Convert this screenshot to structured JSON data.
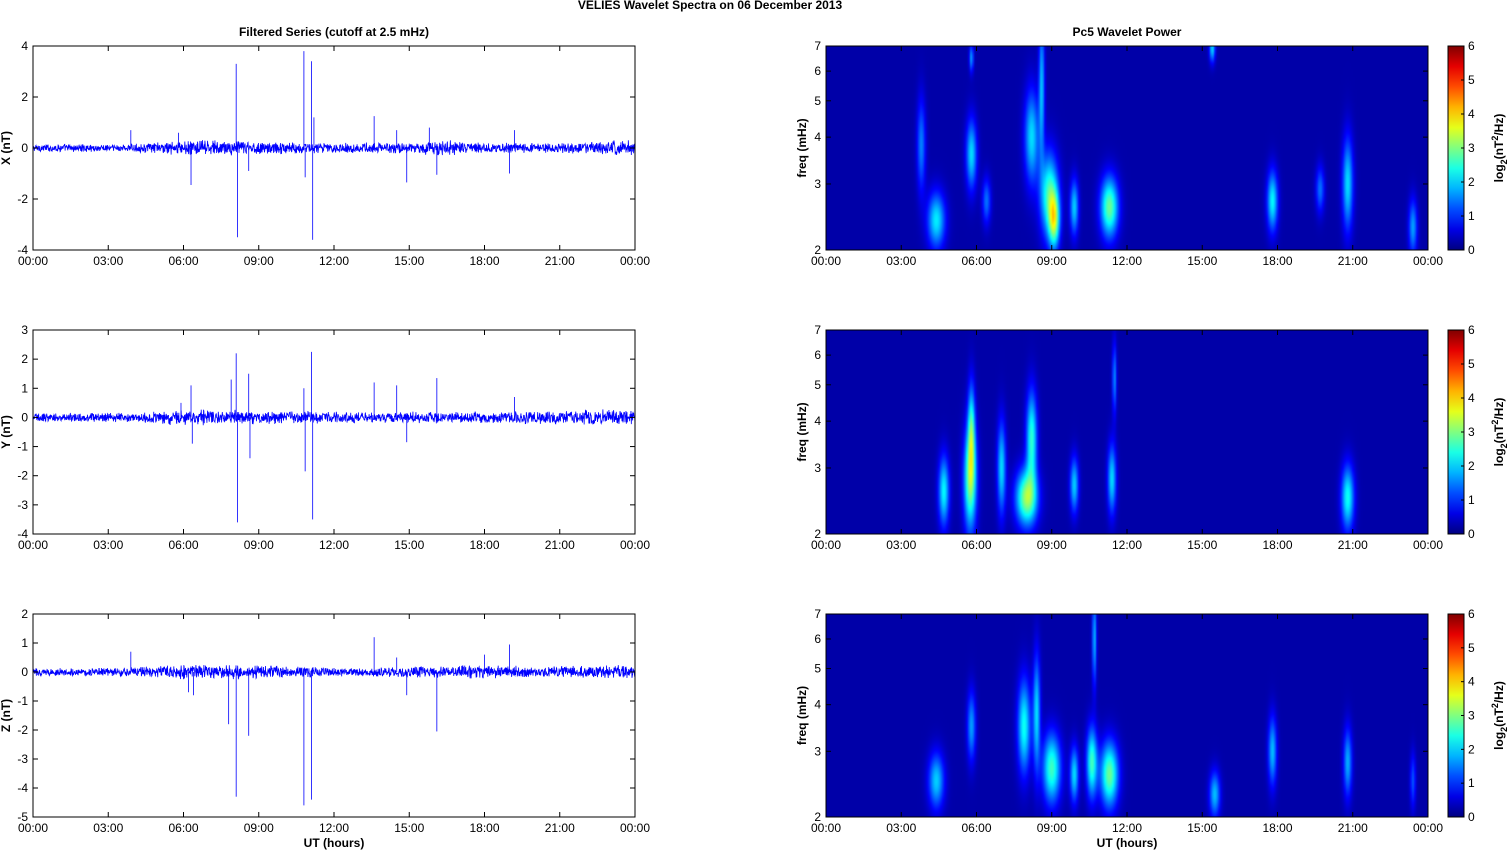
{
  "figure": {
    "title": "VELIES Wavelet Spectra on 06 December  2013"
  },
  "chart_data": [
    {
      "type": "line",
      "title": "Filtered Series (cutoff at 2.5 mHz)",
      "ylabel": "X (nT)",
      "xlabel": "",
      "x_ticks": [
        "00:00",
        "03:00",
        "06:00",
        "09:00",
        "12:00",
        "15:00",
        "18:00",
        "21:00",
        "00:00"
      ],
      "y_ticks": [
        -4,
        -2,
        0,
        2,
        4
      ],
      "ylim": [
        -4,
        4
      ],
      "xlim_hours": [
        0,
        24
      ],
      "line_color": "#0000ff",
      "noise_envelope": [
        {
          "t": 0,
          "a": 0.12
        },
        {
          "t": 4,
          "a": 0.12
        },
        {
          "t": 5.5,
          "a": 0.2
        },
        {
          "t": 7,
          "a": 0.25
        },
        {
          "t": 9,
          "a": 0.2
        },
        {
          "t": 12,
          "a": 0.15
        },
        {
          "t": 15,
          "a": 0.18
        },
        {
          "t": 16,
          "a": 0.25
        },
        {
          "t": 18,
          "a": 0.15
        },
        {
          "t": 21,
          "a": 0.15
        },
        {
          "t": 24,
          "a": 0.25
        }
      ],
      "spikes": [
        {
          "t": 3.9,
          "v": 0.7
        },
        {
          "t": 5.8,
          "v": 0.6
        },
        {
          "t": 6.3,
          "v": -1.45
        },
        {
          "t": 8.1,
          "v": 3.3
        },
        {
          "t": 8.15,
          "v": -3.5
        },
        {
          "t": 8.6,
          "v": -0.9
        },
        {
          "t": 10.8,
          "v": 3.8
        },
        {
          "t": 10.85,
          "v": -1.15
        },
        {
          "t": 11.1,
          "v": 3.4
        },
        {
          "t": 11.15,
          "v": -3.6
        },
        {
          "t": 11.2,
          "v": 1.2
        },
        {
          "t": 13.6,
          "v": 1.25
        },
        {
          "t": 14.5,
          "v": 0.7
        },
        {
          "t": 14.9,
          "v": -1.35
        },
        {
          "t": 15.8,
          "v": 0.8
        },
        {
          "t": 16.1,
          "v": -1.05
        },
        {
          "t": 19.0,
          "v": -1.0
        },
        {
          "t": 19.2,
          "v": 0.7
        }
      ]
    },
    {
      "type": "line",
      "title": "",
      "ylabel": "Y (nT)",
      "xlabel": "",
      "x_ticks": [
        "00:00",
        "03:00",
        "06:00",
        "09:00",
        "12:00",
        "15:00",
        "18:00",
        "21:00",
        "00:00"
      ],
      "y_ticks": [
        -4,
        -3,
        -2,
        -1,
        0,
        1,
        2,
        3
      ],
      "ylim": [
        -4,
        3
      ],
      "xlim_hours": [
        0,
        24
      ],
      "line_color": "#0000ff",
      "noise_envelope": [
        {
          "t": 0,
          "a": 0.12
        },
        {
          "t": 4,
          "a": 0.12
        },
        {
          "t": 5.5,
          "a": 0.2
        },
        {
          "t": 7,
          "a": 0.2
        },
        {
          "t": 9,
          "a": 0.18
        },
        {
          "t": 12,
          "a": 0.15
        },
        {
          "t": 15,
          "a": 0.15
        },
        {
          "t": 18,
          "a": 0.15
        },
        {
          "t": 21,
          "a": 0.2
        },
        {
          "t": 24,
          "a": 0.2
        }
      ],
      "spikes": [
        {
          "t": 5.9,
          "v": 0.5
        },
        {
          "t": 6.3,
          "v": 1.1
        },
        {
          "t": 6.35,
          "v": -0.9
        },
        {
          "t": 7.9,
          "v": 1.3
        },
        {
          "t": 8.1,
          "v": 2.2
        },
        {
          "t": 8.15,
          "v": -3.6
        },
        {
          "t": 8.6,
          "v": 1.5
        },
        {
          "t": 8.65,
          "v": -1.4
        },
        {
          "t": 10.8,
          "v": 1.0
        },
        {
          "t": 10.85,
          "v": -1.85
        },
        {
          "t": 11.1,
          "v": 2.25
        },
        {
          "t": 11.15,
          "v": -3.5
        },
        {
          "t": 13.6,
          "v": 1.2
        },
        {
          "t": 14.5,
          "v": 1.1
        },
        {
          "t": 14.9,
          "v": -0.85
        },
        {
          "t": 16.1,
          "v": 1.35
        },
        {
          "t": 19.2,
          "v": 0.7
        }
      ]
    },
    {
      "type": "line",
      "title": "",
      "ylabel": "Z (nT)",
      "xlabel": "UT (hours)",
      "x_ticks": [
        "00:00",
        "03:00",
        "06:00",
        "09:00",
        "12:00",
        "15:00",
        "18:00",
        "21:00",
        "00:00"
      ],
      "y_ticks": [
        -5,
        -4,
        -3,
        -2,
        -1,
        0,
        1,
        2
      ],
      "ylim": [
        -5,
        2
      ],
      "xlim_hours": [
        0,
        24
      ],
      "line_color": "#0000ff",
      "noise_envelope": [
        {
          "t": 0,
          "a": 0.1
        },
        {
          "t": 4,
          "a": 0.12
        },
        {
          "t": 5.5,
          "a": 0.18
        },
        {
          "t": 7,
          "a": 0.2
        },
        {
          "t": 9,
          "a": 0.18
        },
        {
          "t": 12,
          "a": 0.12
        },
        {
          "t": 15,
          "a": 0.15
        },
        {
          "t": 18,
          "a": 0.18
        },
        {
          "t": 21,
          "a": 0.15
        },
        {
          "t": 24,
          "a": 0.2
        }
      ],
      "spikes": [
        {
          "t": 3.9,
          "v": 0.7
        },
        {
          "t": 6.2,
          "v": -0.7
        },
        {
          "t": 6.4,
          "v": -0.8
        },
        {
          "t": 7.8,
          "v": -1.8
        },
        {
          "t": 8.1,
          "v": -4.3
        },
        {
          "t": 8.6,
          "v": -2.2
        },
        {
          "t": 10.8,
          "v": -4.6
        },
        {
          "t": 11.1,
          "v": -4.4
        },
        {
          "t": 13.6,
          "v": 1.2
        },
        {
          "t": 14.5,
          "v": 0.5
        },
        {
          "t": 14.9,
          "v": -0.8
        },
        {
          "t": 16.1,
          "v": -2.05
        },
        {
          "t": 18.0,
          "v": 0.6
        },
        {
          "t": 19.0,
          "v": 0.95
        }
      ]
    },
    {
      "type": "heatmap",
      "title": "Pc5 Wavelet Power",
      "ylabel": "freq (mHz)",
      "xlabel": "",
      "colorbar_label": "log2(nT^2/Hz)",
      "colorbar_ticks": [
        0,
        1,
        2,
        3,
        4,
        5,
        6
      ],
      "x_ticks": [
        "00:00",
        "03:00",
        "06:00",
        "09:00",
        "12:00",
        "15:00",
        "18:00",
        "21:00",
        "00:00"
      ],
      "y_ticks": [
        2,
        3,
        4,
        5,
        6,
        7
      ],
      "y_scale": "log",
      "ylim": [
        2,
        7
      ],
      "zlim": [
        0,
        6
      ],
      "blobs": [
        {
          "t": 3.8,
          "f": 3.8,
          "dt": 0.12,
          "df": 0.2,
          "p": 1.4
        },
        {
          "t": 4.4,
          "f": 2.4,
          "dt": 0.25,
          "df": 0.12,
          "p": 2.1
        },
        {
          "t": 5.8,
          "f": 3.6,
          "dt": 0.15,
          "df": 0.15,
          "p": 2.0
        },
        {
          "t": 6.4,
          "f": 2.7,
          "dt": 0.12,
          "df": 0.1,
          "p": 1.3
        },
        {
          "t": 5.8,
          "f": 6.5,
          "dt": 0.06,
          "df": 0.06,
          "p": 1.6
        },
        {
          "t": 8.2,
          "f": 4.0,
          "dt": 0.2,
          "df": 0.2,
          "p": 2.0
        },
        {
          "t": 8.6,
          "f": 5.5,
          "dt": 0.08,
          "df": 0.3,
          "p": 1.8
        },
        {
          "t": 8.9,
          "f": 2.8,
          "dt": 0.25,
          "df": 0.18,
          "p": 2.6
        },
        {
          "t": 9.1,
          "f": 2.4,
          "dt": 0.15,
          "df": 0.12,
          "p": 2.8
        },
        {
          "t": 9.9,
          "f": 2.6,
          "dt": 0.12,
          "df": 0.12,
          "p": 1.9
        },
        {
          "t": 11.3,
          "f": 2.6,
          "dt": 0.25,
          "df": 0.13,
          "p": 2.9
        },
        {
          "t": 15.4,
          "f": 6.9,
          "dt": 0.08,
          "df": 0.06,
          "p": 2.0
        },
        {
          "t": 17.8,
          "f": 2.7,
          "dt": 0.15,
          "df": 0.13,
          "p": 2.2
        },
        {
          "t": 19.7,
          "f": 2.9,
          "dt": 0.12,
          "df": 0.1,
          "p": 1.3
        },
        {
          "t": 20.8,
          "f": 3.0,
          "dt": 0.15,
          "df": 0.2,
          "p": 2.0
        },
        {
          "t": 23.4,
          "f": 2.3,
          "dt": 0.12,
          "df": 0.12,
          "p": 1.6
        }
      ]
    },
    {
      "type": "heatmap",
      "title": "",
      "ylabel": "freq (mHz)",
      "xlabel": "",
      "colorbar_label": "log2(nT^2/Hz)",
      "colorbar_ticks": [
        0,
        1,
        2,
        3,
        4,
        5,
        6
      ],
      "x_ticks": [
        "00:00",
        "03:00",
        "06:00",
        "09:00",
        "12:00",
        "15:00",
        "18:00",
        "21:00",
        "00:00"
      ],
      "y_ticks": [
        2,
        3,
        4,
        5,
        6,
        7
      ],
      "y_scale": "log",
      "ylim": [
        2,
        7
      ],
      "zlim": [
        0,
        6
      ],
      "blobs": [
        {
          "t": 4.7,
          "f": 2.6,
          "dt": 0.15,
          "df": 0.15,
          "p": 2.2
        },
        {
          "t": 5.75,
          "f": 2.8,
          "dt": 0.18,
          "df": 0.22,
          "p": 3.0
        },
        {
          "t": 5.8,
          "f": 3.8,
          "dt": 0.1,
          "df": 0.2,
          "p": 2.2
        },
        {
          "t": 7.0,
          "f": 3.0,
          "dt": 0.12,
          "df": 0.2,
          "p": 2.0
        },
        {
          "t": 8.0,
          "f": 2.5,
          "dt": 0.3,
          "df": 0.12,
          "p": 3.2
        },
        {
          "t": 8.2,
          "f": 3.6,
          "dt": 0.15,
          "df": 0.2,
          "p": 2.5
        },
        {
          "t": 9.9,
          "f": 2.7,
          "dt": 0.12,
          "df": 0.12,
          "p": 1.9
        },
        {
          "t": 11.4,
          "f": 2.8,
          "dt": 0.12,
          "df": 0.15,
          "p": 2.0
        },
        {
          "t": 11.5,
          "f": 5.2,
          "dt": 0.06,
          "df": 0.15,
          "p": 1.5
        },
        {
          "t": 20.8,
          "f": 2.5,
          "dt": 0.18,
          "df": 0.14,
          "p": 2.3
        }
      ]
    },
    {
      "type": "heatmap",
      "title": "",
      "ylabel": "freq (mHz)",
      "xlabel": "UT (hours)",
      "colorbar_label": "log2(nT^2/Hz)",
      "colorbar_ticks": [
        0,
        1,
        2,
        3,
        4,
        5,
        6
      ],
      "x_ticks": [
        "00:00",
        "03:00",
        "06:00",
        "09:00",
        "12:00",
        "15:00",
        "18:00",
        "21:00",
        "00:00"
      ],
      "y_ticks": [
        2,
        3,
        4,
        5,
        6,
        7
      ],
      "y_scale": "log",
      "ylim": [
        2,
        7
      ],
      "zlim": [
        0,
        6
      ],
      "blobs": [
        {
          "t": 4.4,
          "f": 2.5,
          "dt": 0.22,
          "df": 0.12,
          "p": 1.9
        },
        {
          "t": 5.8,
          "f": 3.5,
          "dt": 0.12,
          "df": 0.15,
          "p": 1.6
        },
        {
          "t": 7.9,
          "f": 3.5,
          "dt": 0.18,
          "df": 0.2,
          "p": 2.3
        },
        {
          "t": 8.4,
          "f": 3.8,
          "dt": 0.1,
          "df": 0.25,
          "p": 2.0
        },
        {
          "t": 9.0,
          "f": 2.7,
          "dt": 0.25,
          "df": 0.15,
          "p": 2.6
        },
        {
          "t": 9.9,
          "f": 2.6,
          "dt": 0.12,
          "df": 0.12,
          "p": 2.0
        },
        {
          "t": 10.6,
          "f": 2.8,
          "dt": 0.15,
          "df": 0.15,
          "p": 2.6
        },
        {
          "t": 11.3,
          "f": 2.6,
          "dt": 0.25,
          "df": 0.14,
          "p": 2.9
        },
        {
          "t": 10.7,
          "f": 6.0,
          "dt": 0.06,
          "df": 0.2,
          "p": 1.8
        },
        {
          "t": 15.5,
          "f": 2.3,
          "dt": 0.15,
          "df": 0.1,
          "p": 1.8
        },
        {
          "t": 17.8,
          "f": 3.0,
          "dt": 0.12,
          "df": 0.15,
          "p": 1.8
        },
        {
          "t": 20.8,
          "f": 2.8,
          "dt": 0.12,
          "df": 0.15,
          "p": 1.7
        },
        {
          "t": 23.4,
          "f": 2.5,
          "dt": 0.08,
          "df": 0.12,
          "p": 1.1
        }
      ]
    }
  ]
}
